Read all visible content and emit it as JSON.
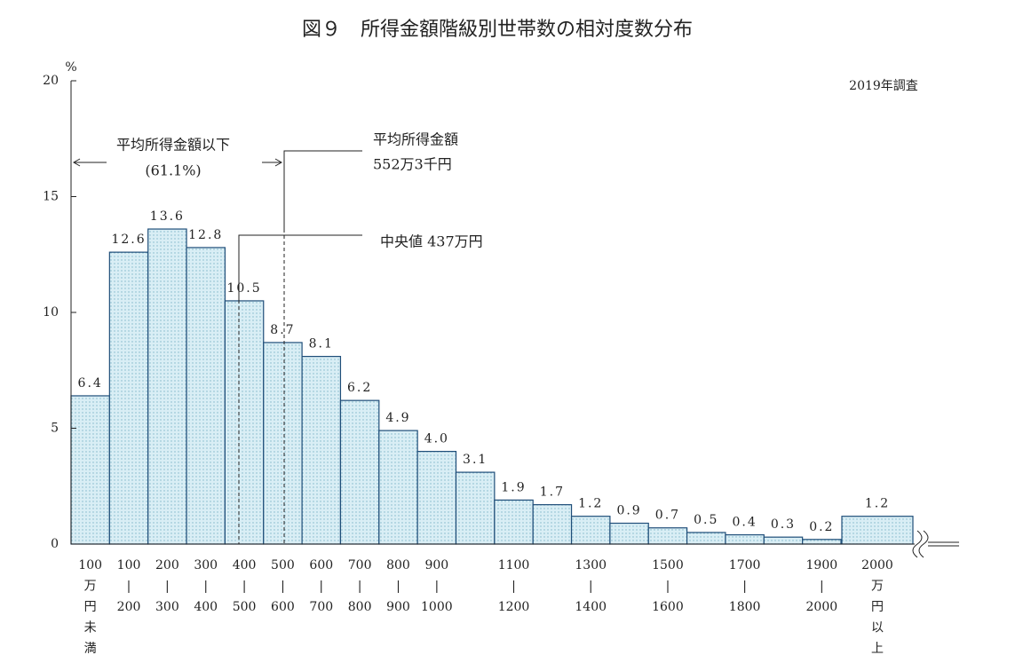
{
  "chart_data": {
    "type": "bar",
    "title": "図９　所得金額階級別世帯数の相対度数分布",
    "y_unit": "%",
    "note": "2019年調査",
    "categories": [
      "100\n万\n円\n未\n満",
      "100\n|\n200",
      "200\n|\n300",
      "300\n|\n400",
      "400\n|\n500",
      "500\n|\n600",
      "600\n|\n700",
      "700\n|\n800",
      "800\n|\n900",
      "900\n|\n1000",
      null,
      "1100\n|\n1200",
      null,
      "1300\n|\n1400",
      null,
      "1500\n|\n1600",
      null,
      "1700\n|\n1800",
      null,
      "1900\n|\n2000",
      "2000\n万\n円\n以\n上"
    ],
    "values": [
      6.4,
      12.6,
      13.6,
      12.8,
      10.5,
      8.7,
      8.1,
      6.2,
      4.9,
      4.0,
      3.1,
      1.9,
      1.7,
      1.2,
      0.9,
      0.7,
      0.5,
      0.4,
      0.3,
      0.2,
      1.2
    ],
    "value_labels": [
      "6.4",
      "12.6",
      "13.6",
      "12.8",
      "10.5",
      "8.7",
      "8.1",
      "6.2",
      "4.9",
      "4.0",
      "3.1",
      "1.9",
      "1.7",
      "1.2",
      "0.9",
      "0.7",
      "0.5",
      "0.4",
      "0.3",
      "0.2",
      "1.2"
    ],
    "color": "#cfe8f0",
    "ylim": [
      0,
      20
    ],
    "yticks": [
      0,
      5,
      10,
      15,
      20
    ],
    "annotations": {
      "below_mean": "平均所得金額以下",
      "below_mean_share": "(61.1%)",
      "mean_label": "平均所得金額",
      "mean_value": "552万3千円",
      "median": "中央値 437万円"
    }
  }
}
